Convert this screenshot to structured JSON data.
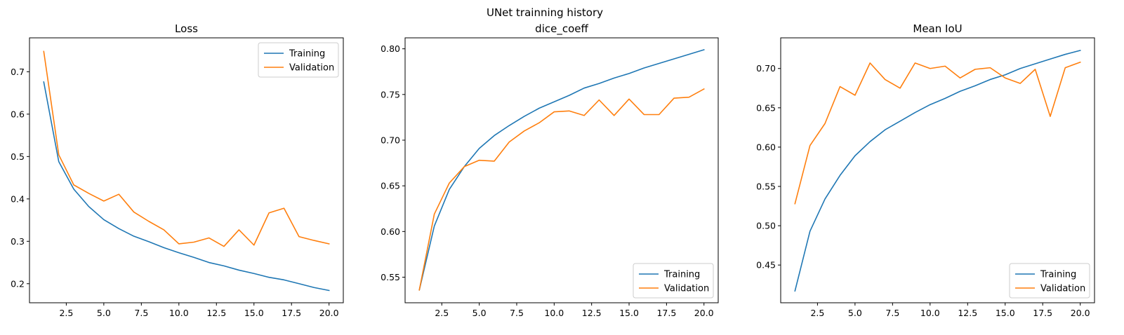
{
  "figure": {
    "suptitle": "UNet trainning history"
  },
  "colors": {
    "training": "#1f77b4",
    "validation": "#ff7f0e",
    "axis": "#000000",
    "legend_border": "#cccccc"
  },
  "chart_data": [
    {
      "type": "line",
      "title": "Loss",
      "xlabel": "",
      "ylabel": "",
      "xlim": [
        0.05,
        20.95
      ],
      "ylim": [
        0.155,
        0.78
      ],
      "xticks": [
        2.5,
        5.0,
        7.5,
        10.0,
        12.5,
        15.0,
        17.5,
        20.0
      ],
      "xtick_labels": [
        "2.5",
        "5.0",
        "7.5",
        "10.0",
        "12.5",
        "15.0",
        "17.5",
        "20.0"
      ],
      "yticks": [
        0.2,
        0.3,
        0.4,
        0.5,
        0.6,
        0.7
      ],
      "ytick_labels": [
        "0.2",
        "0.3",
        "0.4",
        "0.5",
        "0.6",
        "0.7"
      ],
      "legend_loc": "top-right",
      "grid": false,
      "x": [
        1,
        2,
        3,
        4,
        5,
        6,
        7,
        8,
        9,
        10,
        11,
        12,
        13,
        14,
        15,
        16,
        17,
        18,
        19,
        20
      ],
      "series": [
        {
          "name": "Training",
          "color": "#1f77b4",
          "values": [
            0.676,
            0.488,
            0.423,
            0.382,
            0.351,
            0.33,
            0.312,
            0.299,
            0.285,
            0.273,
            0.262,
            0.25,
            0.242,
            0.232,
            0.224,
            0.215,
            0.209,
            0.2,
            0.191,
            0.184
          ]
        },
        {
          "name": "Validation",
          "color": "#ff7f0e",
          "values": [
            0.748,
            0.504,
            0.433,
            0.413,
            0.395,
            0.411,
            0.369,
            0.347,
            0.327,
            0.294,
            0.298,
            0.308,
            0.288,
            0.327,
            0.291,
            0.367,
            0.378,
            0.311,
            0.302,
            0.294
          ]
        }
      ]
    },
    {
      "type": "line",
      "title": "dice_coeff",
      "xlabel": "",
      "ylabel": "",
      "xlim": [
        0.05,
        20.95
      ],
      "ylim": [
        0.522,
        0.812
      ],
      "xticks": [
        2.5,
        5.0,
        7.5,
        10.0,
        12.5,
        15.0,
        17.5,
        20.0
      ],
      "xtick_labels": [
        "2.5",
        "5.0",
        "7.5",
        "10.0",
        "12.5",
        "15.0",
        "17.5",
        "20.0"
      ],
      "yticks": [
        0.55,
        0.6,
        0.65,
        0.7,
        0.75,
        0.8
      ],
      "ytick_labels": [
        "0.55",
        "0.60",
        "0.65",
        "0.70",
        "0.75",
        "0.80"
      ],
      "legend_loc": "bottom-right",
      "grid": false,
      "x": [
        1,
        2,
        3,
        4,
        5,
        6,
        7,
        8,
        9,
        10,
        11,
        12,
        13,
        14,
        15,
        16,
        17,
        18,
        19,
        20
      ],
      "series": [
        {
          "name": "Training",
          "color": "#1f77b4",
          "values": [
            0.536,
            0.606,
            0.646,
            0.671,
            0.691,
            0.705,
            0.716,
            0.726,
            0.735,
            0.742,
            0.749,
            0.757,
            0.762,
            0.768,
            0.773,
            0.779,
            0.784,
            0.789,
            0.794,
            0.799
          ]
        },
        {
          "name": "Validation",
          "color": "#ff7f0e",
          "values": [
            0.536,
            0.619,
            0.653,
            0.671,
            0.678,
            0.677,
            0.698,
            0.71,
            0.719,
            0.731,
            0.732,
            0.727,
            0.744,
            0.727,
            0.745,
            0.728,
            0.728,
            0.746,
            0.747,
            0.756
          ]
        }
      ]
    },
    {
      "type": "line",
      "title": "Mean IoU",
      "xlabel": "",
      "ylabel": "",
      "xlim": [
        0.05,
        20.95
      ],
      "ylim": [
        0.402,
        0.739
      ],
      "xticks": [
        2.5,
        5.0,
        7.5,
        10.0,
        12.5,
        15.0,
        17.5,
        20.0
      ],
      "xtick_labels": [
        "2.5",
        "5.0",
        "7.5",
        "10.0",
        "12.5",
        "15.0",
        "17.5",
        "20.0"
      ],
      "yticks": [
        0.45,
        0.5,
        0.55,
        0.6,
        0.65,
        0.7
      ],
      "ytick_labels": [
        "0.45",
        "0.50",
        "0.55",
        "0.60",
        "0.65",
        "0.70"
      ],
      "legend_loc": "bottom-right",
      "grid": false,
      "x": [
        1,
        2,
        3,
        4,
        5,
        6,
        7,
        8,
        9,
        10,
        11,
        12,
        13,
        14,
        15,
        16,
        17,
        18,
        19,
        20
      ],
      "series": [
        {
          "name": "Training",
          "color": "#1f77b4",
          "values": [
            0.417,
            0.493,
            0.534,
            0.564,
            0.589,
            0.607,
            0.622,
            0.633,
            0.644,
            0.654,
            0.662,
            0.671,
            0.678,
            0.686,
            0.692,
            0.7,
            0.706,
            0.712,
            0.718,
            0.723
          ]
        },
        {
          "name": "Validation",
          "color": "#ff7f0e",
          "values": [
            0.528,
            0.602,
            0.63,
            0.677,
            0.666,
            0.707,
            0.686,
            0.675,
            0.707,
            0.7,
            0.703,
            0.688,
            0.699,
            0.701,
            0.688,
            0.681,
            0.699,
            0.639,
            0.701,
            0.708
          ]
        }
      ]
    }
  ]
}
